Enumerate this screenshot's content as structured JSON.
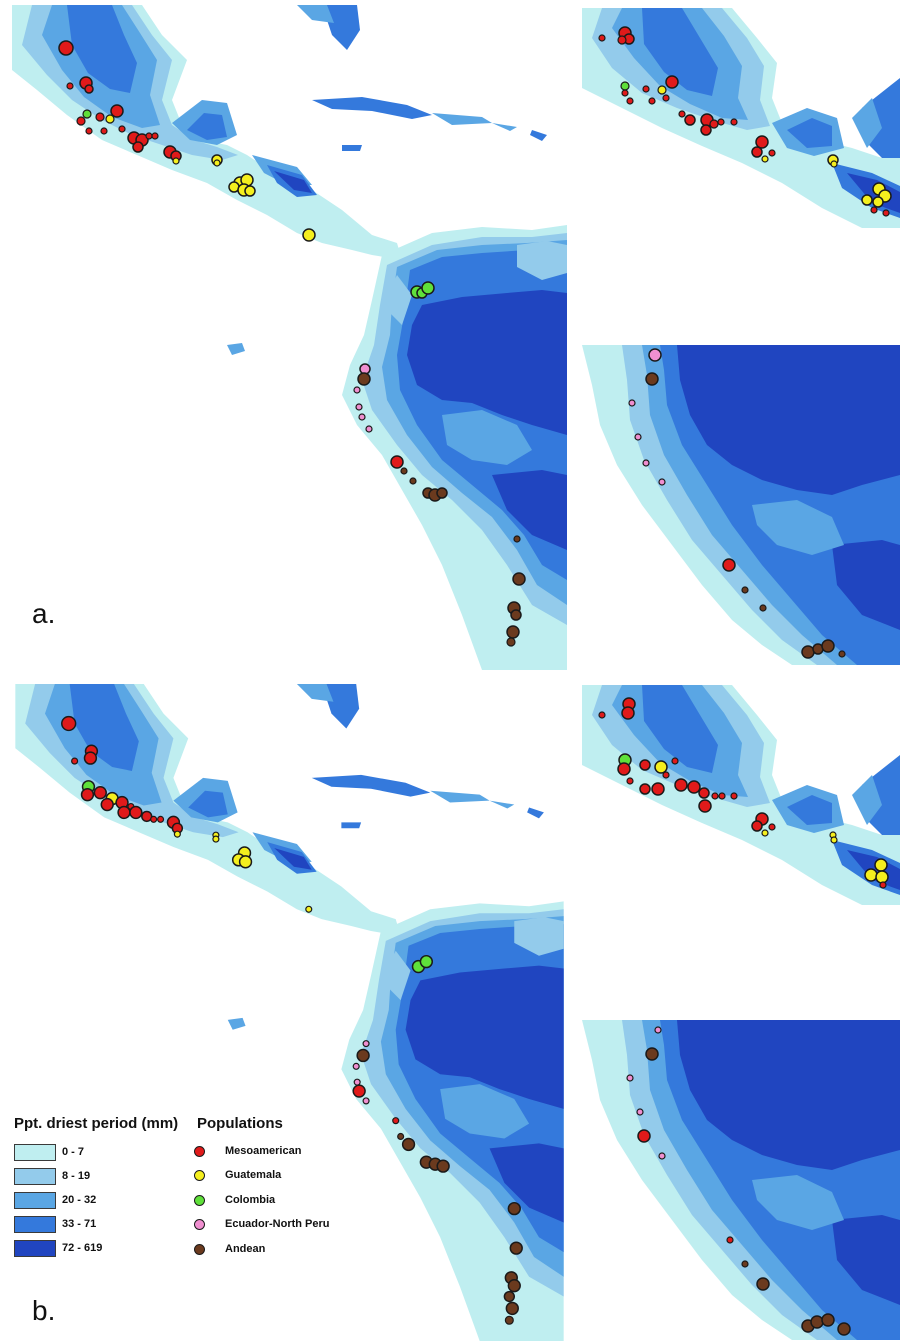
{
  "panels": {
    "a": {
      "label": "a."
    },
    "b": {
      "label": "b."
    }
  },
  "colors": {
    "ocean": "#ffffff",
    "bin_0_7": "#bfeef0",
    "bin_8_19": "#93cbeb",
    "bin_20_32": "#5aa6e4",
    "bin_33_71": "#3479dc",
    "bin_72_619": "#2045c0",
    "outline": "#1a1a1a"
  },
  "legend": {
    "precip_title": "Ppt. driest period (mm)",
    "bins": [
      {
        "label": "0 - 7",
        "color": "#bfeef0"
      },
      {
        "label": "8 - 19",
        "color": "#93cbeb"
      },
      {
        "label": "20 - 32",
        "color": "#5aa6e4"
      },
      {
        "label": "33 - 71",
        "color": "#3479dc"
      },
      {
        "label": "72 - 619",
        "color": "#2045c0"
      }
    ],
    "pop_title": "Populations",
    "populations": [
      {
        "label": "Mesoamerican",
        "color": "#e01a1a"
      },
      {
        "label": "Guatemala",
        "color": "#f5ef1e"
      },
      {
        "label": "Colombia",
        "color": "#5fe03a"
      },
      {
        "label": "Ecuador-North Peru",
        "color": "#f08fd0"
      },
      {
        "label": "Andean",
        "color": "#6b3a1e"
      }
    ]
  }
}
